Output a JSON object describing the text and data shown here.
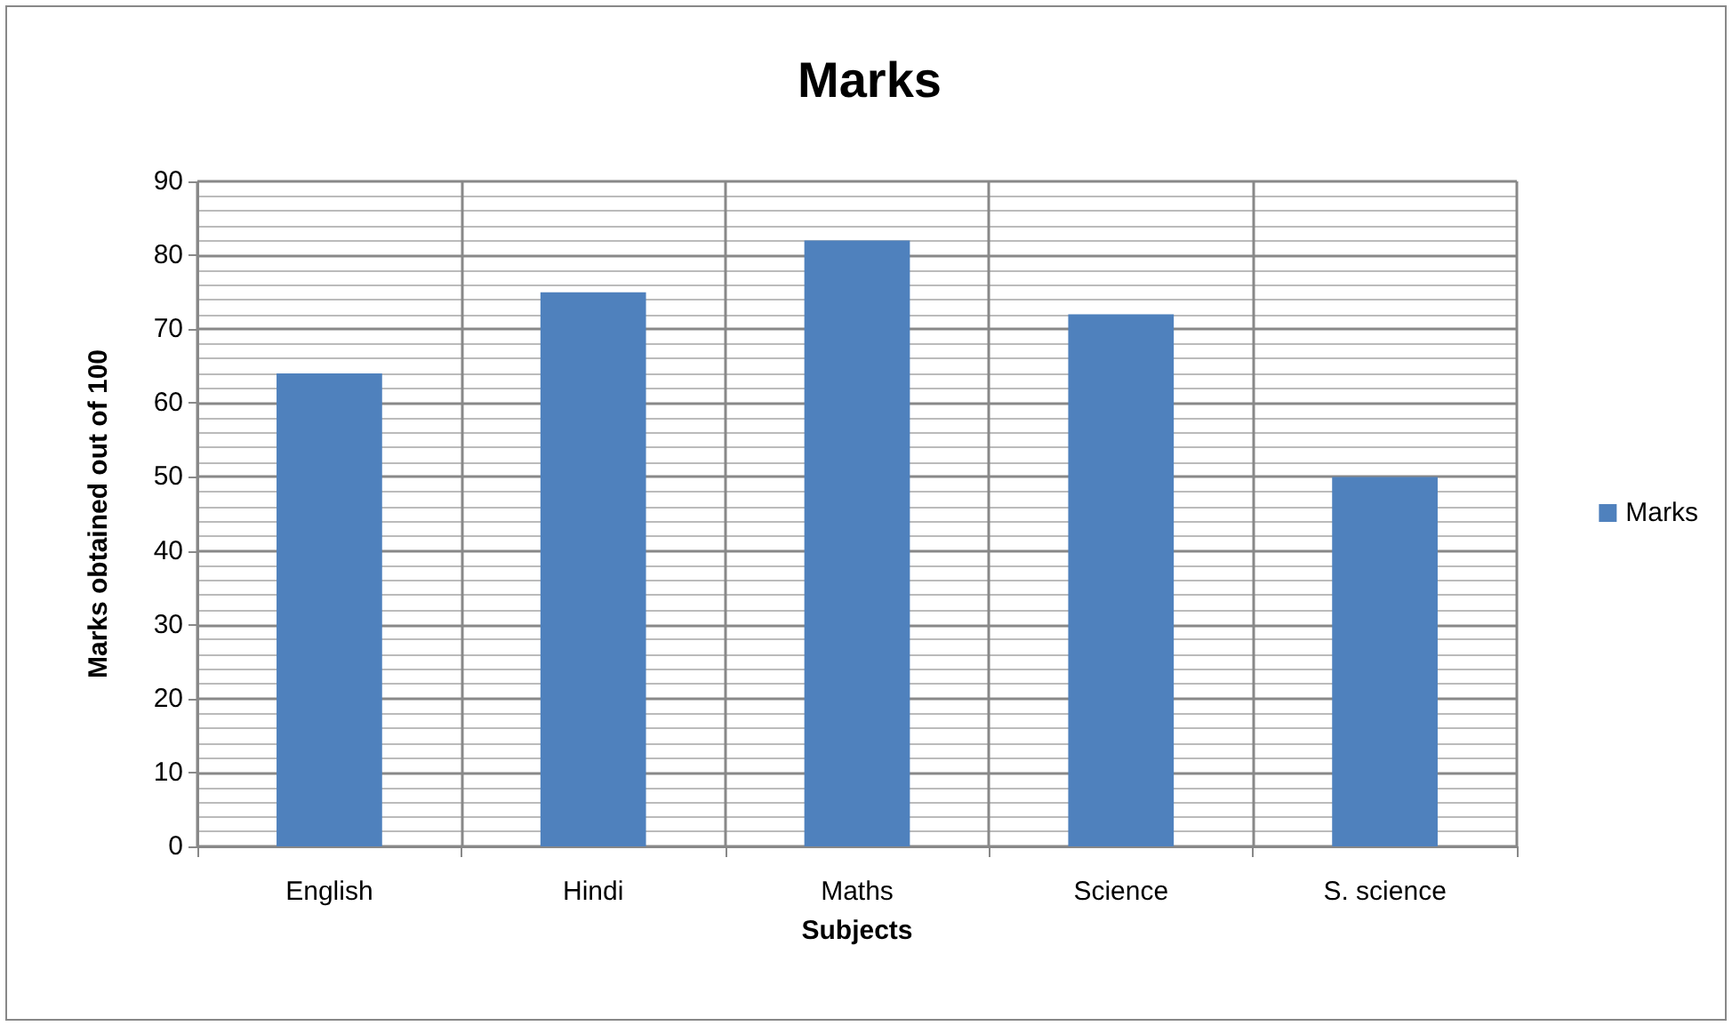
{
  "chart_data": {
    "type": "bar",
    "title": "Marks",
    "xlabel": "Subjects",
    "ylabel": "Marks obtained out of 100",
    "categories": [
      "English",
      "Hindi",
      "Maths",
      "Science",
      "S. science"
    ],
    "series": [
      {
        "name": "Marks",
        "color": "#4f81bd",
        "values": [
          64,
          75,
          82,
          72,
          50
        ]
      }
    ],
    "ylim": [
      0,
      90
    ],
    "yticks": [
      0,
      10,
      20,
      30,
      40,
      50,
      60,
      70,
      80,
      90
    ],
    "grid": true,
    "legend": "right"
  }
}
